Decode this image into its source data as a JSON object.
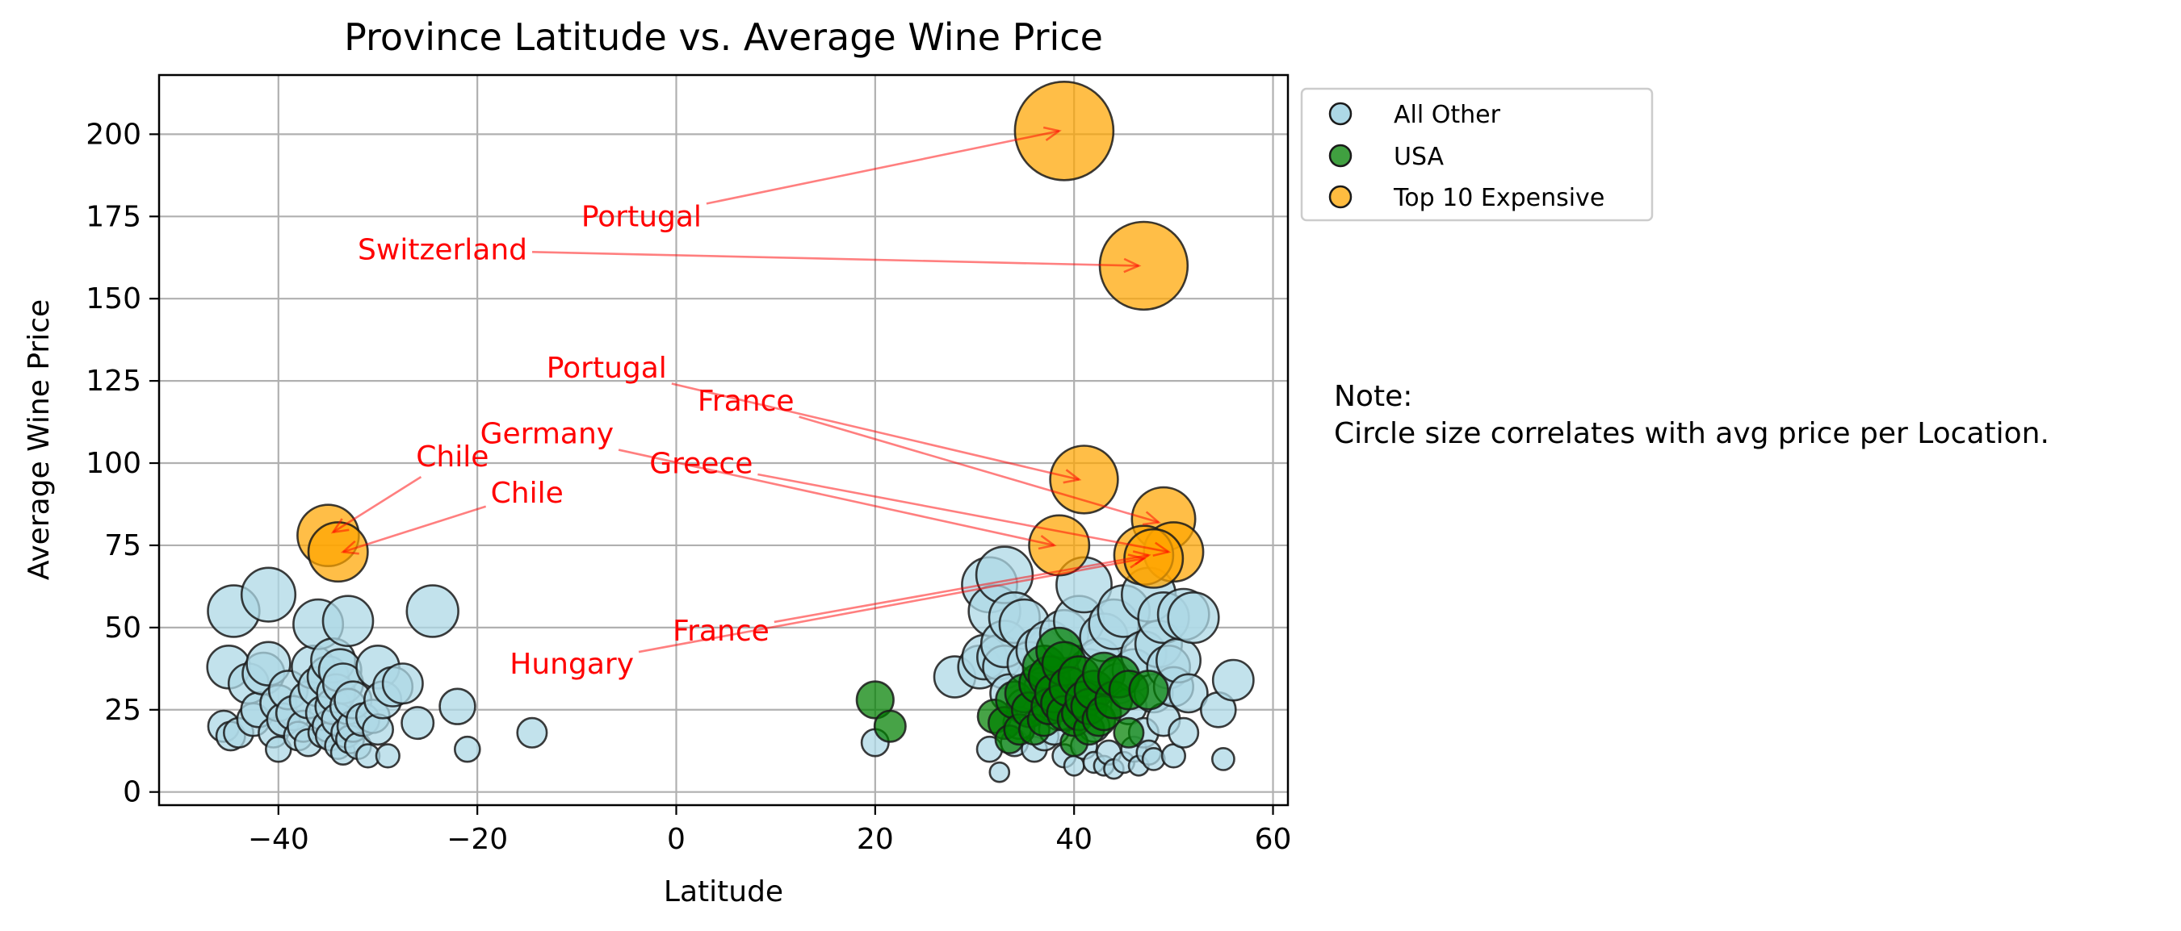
{
  "chart_data": {
    "type": "scatter",
    "title": "Province Latitude vs. Average Wine Price",
    "xlabel": "Latitude",
    "ylabel": "Average Wine Price",
    "xlim": [
      -52,
      61.5
    ],
    "ylim": [
      -4,
      218
    ],
    "xticks": [
      -40,
      -20,
      0,
      20,
      40,
      60
    ],
    "yticks": [
      0,
      25,
      50,
      75,
      100,
      125,
      150,
      175,
      200
    ],
    "grid": true,
    "legend_position": "upper-right-outside",
    "size_note": "Circle size scales with average price",
    "series": [
      {
        "name": "All Other",
        "color": "#add8e6",
        "points": [
          [
            -45.5,
            20
          ],
          [
            -44.8,
            17
          ],
          [
            -44,
            18
          ],
          [
            -45,
            38
          ],
          [
            -44.5,
            55
          ],
          [
            -43,
            33
          ],
          [
            -42.5,
            22
          ],
          [
            -42,
            25
          ],
          [
            -41.5,
            36
          ],
          [
            -41,
            39
          ],
          [
            -41,
            60
          ],
          [
            -40.5,
            18
          ],
          [
            -40,
            27
          ],
          [
            -40,
            13
          ],
          [
            -39.5,
            22
          ],
          [
            -39,
            31
          ],
          [
            -38.5,
            24
          ],
          [
            -38,
            17
          ],
          [
            -37.5,
            20
          ],
          [
            -37,
            15
          ],
          [
            -37,
            28
          ],
          [
            -36.5,
            38
          ],
          [
            -36,
            51
          ],
          [
            -36,
            32
          ],
          [
            -35.5,
            18
          ],
          [
            -35.5,
            24
          ],
          [
            -35,
            20
          ],
          [
            -35,
            35
          ],
          [
            -34.8,
            17
          ],
          [
            -34.5,
            40
          ],
          [
            -34.5,
            26
          ],
          [
            -34.2,
            30
          ],
          [
            -34,
            14
          ],
          [
            -34,
            22
          ],
          [
            -33.8,
            37
          ],
          [
            -33.5,
            33
          ],
          [
            -33.5,
            12
          ],
          [
            -33.2,
            18
          ],
          [
            -33,
            26
          ],
          [
            -33,
            52
          ],
          [
            -32.8,
            16
          ],
          [
            -32.5,
            20
          ],
          [
            -32.5,
            28
          ],
          [
            -32,
            14
          ],
          [
            -31.5,
            22
          ],
          [
            -31,
            11
          ],
          [
            -30.5,
            23
          ],
          [
            -30,
            38
          ],
          [
            -30,
            19
          ],
          [
            -29.5,
            28
          ],
          [
            -29,
            11
          ],
          [
            -28.5,
            32
          ],
          [
            -27.5,
            33
          ],
          [
            -26,
            21
          ],
          [
            -24.5,
            55
          ],
          [
            -22,
            26
          ],
          [
            -21,
            13
          ],
          [
            -14.5,
            18
          ],
          [
            20,
            15
          ],
          [
            28,
            35
          ],
          [
            30.5,
            38
          ],
          [
            31,
            41
          ],
          [
            31.5,
            13
          ],
          [
            31.5,
            63
          ],
          [
            32,
            55
          ],
          [
            32.5,
            6
          ],
          [
            32.5,
            41
          ],
          [
            33,
            66
          ],
          [
            33,
            38
          ],
          [
            33,
            45
          ],
          [
            33.5,
            30
          ],
          [
            34,
            53
          ],
          [
            34,
            15
          ],
          [
            34.5,
            21
          ],
          [
            35,
            51
          ],
          [
            35,
            26
          ],
          [
            35.5,
            39
          ],
          [
            36,
            13
          ],
          [
            36.5,
            43
          ],
          [
            37,
            17
          ],
          [
            37,
            32
          ],
          [
            37.5,
            45
          ],
          [
            38,
            19
          ],
          [
            38.5,
            24
          ],
          [
            39,
            11
          ],
          [
            39,
            48
          ],
          [
            39.5,
            29
          ],
          [
            40,
            8
          ],
          [
            40.5,
            52
          ],
          [
            41,
            63
          ],
          [
            41,
            14
          ],
          [
            41.5,
            37
          ],
          [
            42,
            9
          ],
          [
            42,
            20
          ],
          [
            42.5,
            40
          ],
          [
            43,
            8
          ],
          [
            43,
            47
          ],
          [
            43.5,
            12
          ],
          [
            44,
            51
          ],
          [
            44,
            7
          ],
          [
            44.5,
            33
          ],
          [
            45,
            9
          ],
          [
            45,
            55
          ],
          [
            45.5,
            26
          ],
          [
            46,
            13
          ],
          [
            46,
            37
          ],
          [
            46.5,
            8
          ],
          [
            47,
            42
          ],
          [
            47,
            18
          ],
          [
            47.5,
            60
          ],
          [
            47.5,
            12
          ],
          [
            48,
            10
          ],
          [
            48,
            30
          ],
          [
            48.5,
            45
          ],
          [
            49,
            22
          ],
          [
            49,
            53
          ],
          [
            49.5,
            38
          ],
          [
            50,
            32
          ],
          [
            50,
            11
          ],
          [
            50.5,
            40
          ],
          [
            51,
            54
          ],
          [
            51,
            18
          ],
          [
            51.5,
            30
          ],
          [
            52,
            53
          ],
          [
            54.5,
            25
          ],
          [
            55,
            10
          ],
          [
            56,
            34
          ]
        ]
      },
      {
        "name": "USA",
        "color": "#008000",
        "points": [
          [
            20,
            28
          ],
          [
            21.5,
            20
          ],
          [
            32,
            23
          ],
          [
            33,
            21
          ],
          [
            33.5,
            16
          ],
          [
            34,
            28
          ],
          [
            34.5,
            19
          ],
          [
            35,
            30
          ],
          [
            35.5,
            25
          ],
          [
            36,
            19
          ],
          [
            36.5,
            33
          ],
          [
            37,
            22
          ],
          [
            37,
            38
          ],
          [
            37.5,
            35
          ],
          [
            37.5,
            26
          ],
          [
            38,
            30
          ],
          [
            38.5,
            43
          ],
          [
            38.5,
            27
          ],
          [
            39,
            24
          ],
          [
            39,
            39
          ],
          [
            39.5,
            32
          ],
          [
            40,
            15
          ],
          [
            40,
            22
          ],
          [
            40.5,
            35
          ],
          [
            40.5,
            24
          ],
          [
            41,
            28
          ],
          [
            41.5,
            19
          ],
          [
            41.5,
            26
          ],
          [
            42,
            31
          ],
          [
            42.5,
            22
          ],
          [
            43,
            24
          ],
          [
            43,
            36
          ],
          [
            44,
            28
          ],
          [
            44.5,
            35
          ],
          [
            45.5,
            18
          ],
          [
            45.5,
            31
          ],
          [
            47.5,
            31
          ]
        ]
      },
      {
        "name": "Top 10 Expensive",
        "color": "#ffa500",
        "points": [
          [
            39,
            201
          ],
          [
            47,
            160
          ],
          [
            41,
            95
          ],
          [
            49,
            83
          ],
          [
            38.5,
            75
          ],
          [
            50,
            73
          ],
          [
            47,
            72
          ],
          [
            48,
            71
          ],
          [
            -35,
            78
          ],
          [
            -34,
            73
          ]
        ]
      }
    ],
    "annotations": [
      {
        "text": "Portugal",
        "text_at": [
          -3.5,
          172
        ],
        "point": [
          38.5,
          201
        ]
      },
      {
        "text": "Switzerland",
        "text_at": [
          -23.5,
          162
        ],
        "point": [
          46.5,
          160
        ]
      },
      {
        "text": "Portugal",
        "text_at": [
          -7,
          126
        ],
        "point": [
          40.5,
          95
        ]
      },
      {
        "text": "France",
        "text_at": [
          7,
          116
        ],
        "point": [
          48.5,
          82
        ]
      },
      {
        "text": "Germany",
        "text_at": [
          -13,
          106
        ],
        "point": [
          38,
          75
        ]
      },
      {
        "text": "Greece",
        "text_at": [
          2.5,
          97
        ],
        "point": [
          49.5,
          73
        ]
      },
      {
        "text": "Chile",
        "text_at": [
          -22.5,
          99
        ],
        "point": [
          -34.5,
          79
        ]
      },
      {
        "text": "Chile",
        "text_at": [
          -15,
          88
        ],
        "point": [
          -33.5,
          73
        ]
      },
      {
        "text": "France",
        "text_at": [
          4.5,
          46
        ],
        "point": [
          47.5,
          72
        ]
      },
      {
        "text": "Hungary",
        "text_at": [
          -10.5,
          36
        ],
        "point": [
          47,
          71
        ]
      }
    ]
  },
  "note": {
    "line1": "Note:",
    "line2": "Circle size correlates with avg price per Location."
  }
}
